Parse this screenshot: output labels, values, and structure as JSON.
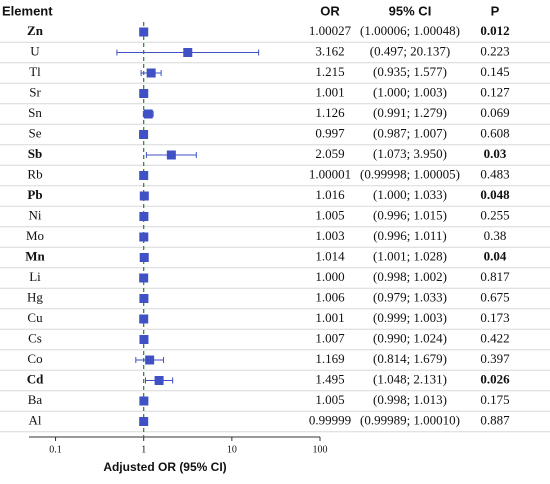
{
  "chart_data": {
    "type": "forest",
    "columns": [
      "Element",
      "OR",
      "95% CI",
      "P"
    ],
    "categories": [
      "Zn",
      "U",
      "Tl",
      "Sr",
      "Sn",
      "Se",
      "Sb",
      "Rb",
      "Pb",
      "Ni",
      "Mo",
      "Mn",
      "Li",
      "Hg",
      "Cu",
      "Cs",
      "Co",
      "Cd",
      "Ba",
      "Al"
    ],
    "values": [
      1.00027,
      3.162,
      1.215,
      1.001,
      1.126,
      0.997,
      2.059,
      1.00001,
      1.016,
      1.005,
      1.003,
      1.014,
      1,
      1.006,
      1.001,
      1.007,
      1.169,
      1.495,
      1.005,
      0.99999
    ],
    "value_labels": [
      "1.00027",
      "3.162",
      "1.215",
      "1.001",
      "1.126",
      "0.997",
      "2.059",
      "1.00001",
      "1.016",
      "1.005",
      "1.003",
      "1.014",
      "1.000",
      "1.006",
      "1.001",
      "1.007",
      "1.169",
      "1.495",
      "1.005",
      "0.99999"
    ],
    "ci_lower": [
      1.00006,
      0.497,
      0.935,
      1,
      0.991,
      0.987,
      1.073,
      0.99998,
      1,
      0.996,
      0.996,
      1.001,
      0.998,
      0.979,
      0.999,
      0.99,
      0.814,
      1.048,
      0.998,
      0.99989
    ],
    "ci_upper": [
      1.00048,
      20.137,
      1.577,
      1.003,
      1.279,
      1.007,
      3.95,
      1.00005,
      1.033,
      1.015,
      1.011,
      1.028,
      1.002,
      1.033,
      1.003,
      1.024,
      1.679,
      2.131,
      1.013,
      1.0001
    ],
    "ci_labels": [
      "(1.00006; 1.00048)",
      "(0.497; 20.137)",
      "(0.935; 1.577)",
      "(1.000; 1.003)",
      "(0.991; 1.279)",
      "(0.987; 1.007)",
      "(1.073; 3.950)",
      "(0.99998; 1.00005)",
      "(1.000; 1.033)",
      "(0.996; 1.015)",
      "(0.996; 1.011)",
      "(1.001; 1.028)",
      "(0.998; 1.002)",
      "(0.979; 1.033)",
      "(0.999; 1.003)",
      "(0.990; 1.024)",
      "(0.814; 1.679)",
      "(1.048; 2.131)",
      "(0.998; 1.013)",
      "(0.99989; 1.00010)"
    ],
    "p_values": [
      0.012,
      0.223,
      0.145,
      0.127,
      0.069,
      0.608,
      0.03,
      0.483,
      0.048,
      0.255,
      0.38,
      0.04,
      0.817,
      0.675,
      0.173,
      0.422,
      0.397,
      0.026,
      0.175,
      0.887
    ],
    "highlight": [
      true,
      false,
      false,
      false,
      false,
      false,
      true,
      false,
      true,
      false,
      false,
      true,
      false,
      false,
      false,
      false,
      false,
      true,
      false,
      false
    ],
    "xlabel": "Adjusted OR (95% CI)",
    "xlim": [
      0.05,
      100
    ],
    "xticks": [
      0.1,
      1,
      10,
      100
    ],
    "log_x": true,
    "reference": 1,
    "color": "#3f51c4"
  }
}
